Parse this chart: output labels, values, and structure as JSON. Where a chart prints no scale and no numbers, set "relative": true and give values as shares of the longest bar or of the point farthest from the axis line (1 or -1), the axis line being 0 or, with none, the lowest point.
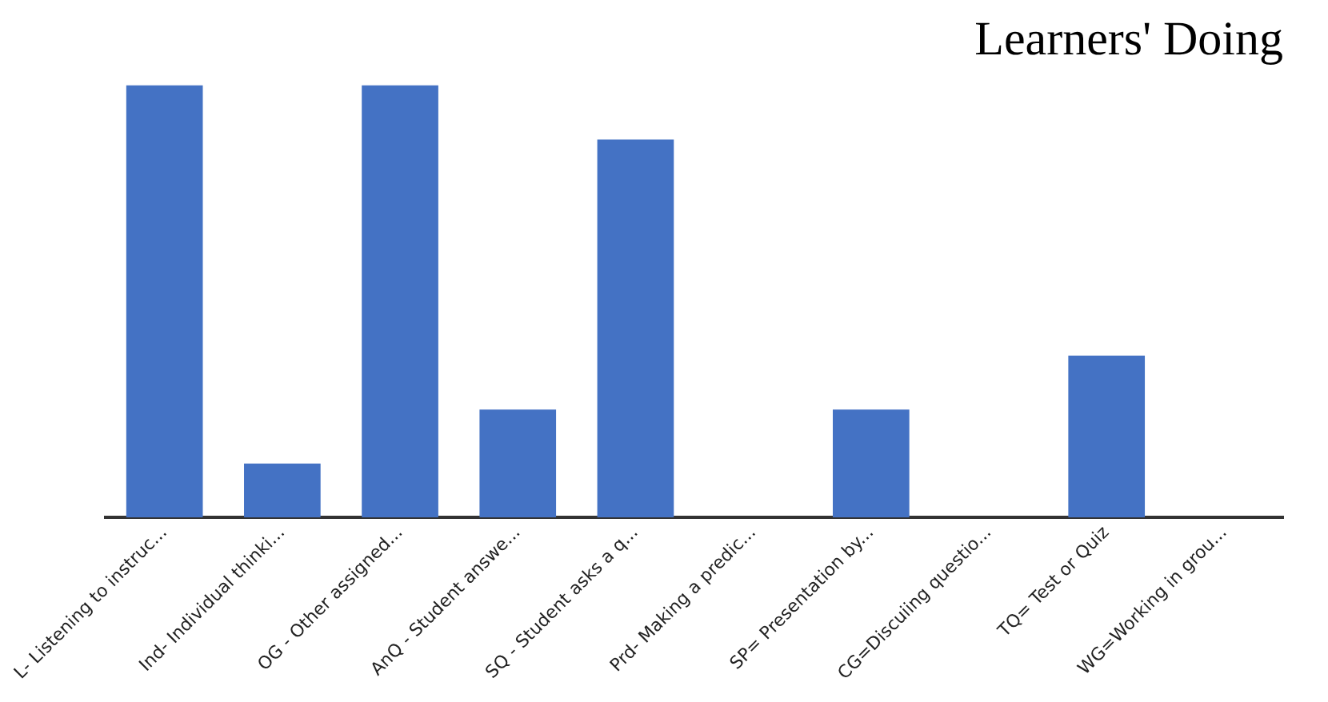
{
  "chart_data": {
    "type": "bar",
    "title": "Learners' Doing",
    "relative": true,
    "color": "#4472c4",
    "categories": [
      "L- Listening to instruc...",
      "Ind- Individual thinki...",
      "OG - Other assigned...",
      "AnQ - Student answe...",
      "SQ - Student asks a q...",
      "Prd- Making a predic...",
      "SP= Presentation by...",
      "CG=Discuiing questio...",
      "TQ= Test or Quiz",
      "WG=Working in grou..."
    ],
    "values": [
      1,
      0.125,
      1,
      0.25,
      0.875,
      0,
      0.25,
      0,
      0.375,
      0
    ]
  }
}
